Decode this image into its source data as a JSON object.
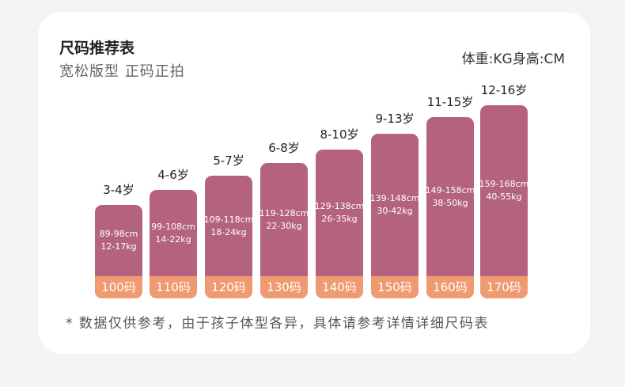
{
  "header": {
    "title": "尺码推荐表",
    "subtitle": "宽松版型 正码正拍",
    "unit": "体重:KG身高:CM"
  },
  "colors": {
    "bar": "#b4627f",
    "size_band": "#f09a71"
  },
  "sizes": [
    {
      "age": "3-4岁",
      "height": "89-98cm",
      "weight": "12-17kg",
      "size": "100码"
    },
    {
      "age": "4-6岁",
      "height": "99-108cm",
      "weight": "14-22kg",
      "size": "110码"
    },
    {
      "age": "5-7岁",
      "height": "109-118cm",
      "weight": "18-24kg",
      "size": "120码"
    },
    {
      "age": "6-8岁",
      "height": "119-128cm",
      "weight": "22-30kg",
      "size": "130码"
    },
    {
      "age": "8-10岁",
      "height": "129-138cm",
      "weight": "26-35kg",
      "size": "140码"
    },
    {
      "age": "9-13岁",
      "height": "139-148cm",
      "weight": "30-42kg",
      "size": "150码"
    },
    {
      "age": "11-15岁",
      "height": "149-158cm",
      "weight": "38-50kg",
      "size": "160码"
    },
    {
      "age": "12-16岁",
      "height": "159-168cm",
      "weight": "40-55kg",
      "size": "170码"
    }
  ],
  "footer": {
    "note": "*  数据仅供参考，由于孩子体型各异，具体请参考详情详细尺码表"
  }
}
